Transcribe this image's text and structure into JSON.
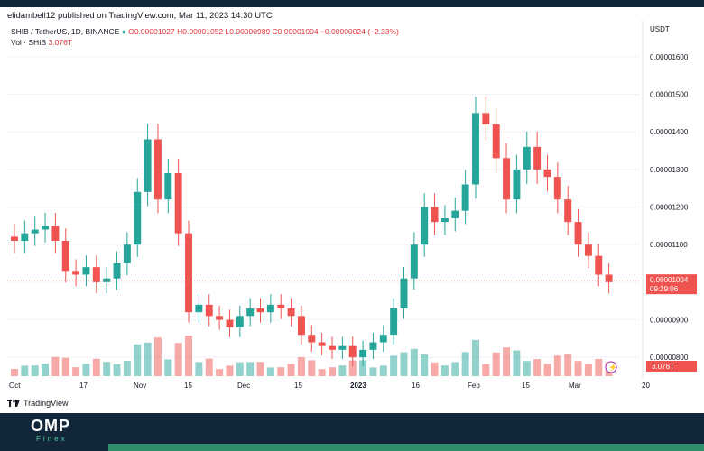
{
  "header": {
    "publisher_line": "elidambell12 published on TradingView.com, Mar 11, 2023 14:30 UTC"
  },
  "legend": {
    "symbol": "SHIB / TetherUS, 1D, BINANCE",
    "open": "O0.00001027",
    "high": "H0.00001052",
    "low": "L0.00000989",
    "close": "C0.00001004",
    "change": "−0.00000024 (−2.33%)"
  },
  "volume_legend": {
    "label": "Vol · SHIB",
    "value": "3.076T"
  },
  "price_axis": {
    "currency": "USDT",
    "labels": [
      "0.00001600",
      "0.00001500",
      "0.00001400",
      "0.00001300",
      "0.00001200",
      "0.00001100",
      "0.00000900",
      "0.00000800"
    ],
    "last_price": "0.00001004",
    "countdown": "09:29:06",
    "volume_badge": "3.076T"
  },
  "time_axis": {
    "labels": [
      "Oct",
      "17",
      "Nov",
      "15",
      "Dec",
      "15",
      "2023",
      "16",
      "Feb",
      "15",
      "Mar",
      "20"
    ]
  },
  "footer": {
    "tradingview": "TradingView",
    "brand": "OMP",
    "brand_sub": "Finex"
  },
  "colors": {
    "up": "#26a69a",
    "down": "#ef5350",
    "background": "#ffffff",
    "footer": "#12263a"
  },
  "chart_data": {
    "type": "candlestick",
    "symbol": "SHIB / TetherUS",
    "interval": "1D",
    "exchange": "BINANCE",
    "ylim": [
      7.5e-06,
      1.65e-05
    ],
    "x": [
      "Oct",
      "17",
      "Nov",
      "15",
      "Dec",
      "15",
      "2023",
      "16",
      "Feb",
      "15",
      "Mar",
      "20"
    ],
    "close_series": [
      1.11e-05,
      1.13e-05,
      1.14e-05,
      1.15e-05,
      1.11e-05,
      1.03e-05,
      1.02e-05,
      1.04e-05,
      1e-05,
      1.01e-05,
      1.05e-05,
      1.1e-05,
      1.24e-05,
      1.38e-05,
      1.22e-05,
      1.29e-05,
      1.13e-05,
      9.2e-06,
      9.4e-06,
      9.1e-06,
      9e-06,
      8.8e-06,
      9.1e-06,
      9.3e-06,
      9.2e-06,
      9.4e-06,
      9.3e-06,
      9.1e-06,
      8.6e-06,
      8.4e-06,
      8.3e-06,
      8.2e-06,
      8.3e-06,
      8e-06,
      8.2e-06,
      8.4e-06,
      8.6e-06,
      9.3e-06,
      1.01e-05,
      1.1e-05,
      1.2e-05,
      1.16e-05,
      1.17e-05,
      1.19e-05,
      1.26e-05,
      1.45e-05,
      1.42e-05,
      1.33e-05,
      1.22e-05,
      1.3e-05,
      1.36e-05,
      1.3e-05,
      1.28e-05,
      1.22e-05,
      1.16e-05,
      1.1e-05,
      1.07e-05,
      1.02e-05,
      1e-05
    ],
    "last_close": 1.004e-05,
    "last_volume": "3.076T"
  }
}
